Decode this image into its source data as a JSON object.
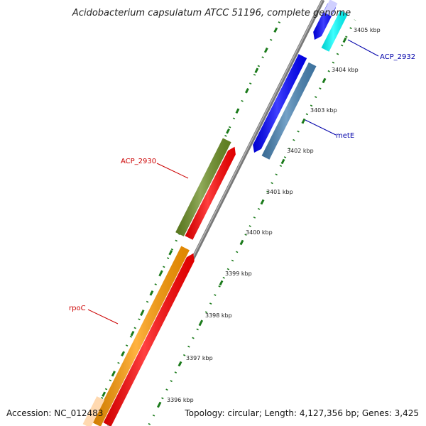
{
  "title": "Acidobacterium capsulatum ATCC 51196, complete genome",
  "accession": "Accession: NC_012483",
  "topology": "Topology: circular; Length: 4,127,356 bp; Genes: 3,425",
  "kbp_labels": [
    "3405 kbp",
    "3404 kbp",
    "3403 kbp",
    "3402 kbp",
    "3401 kbp",
    "3400 kbp",
    "3399 kbp",
    "3398 kbp",
    "3397 kbp",
    "3396 kbp"
  ],
  "gene_labels": {
    "acp2932": "ACP_2932",
    "mete": "metE",
    "acp2930": "ACP_2930",
    "rpoc": "rpoC"
  },
  "colors": {
    "backbone": "#8a8a8a",
    "ticks": "#1a7a1a",
    "forward_label": "#cc0000",
    "reverse_label": "#0000aa",
    "rpoc": "#ff9900",
    "cds_forward": "#ff0000",
    "acp2930": "#6b8e23",
    "mete": "#4682b4",
    "cds_reverse": "#0000ff",
    "acp2932": "#00ffff"
  }
}
